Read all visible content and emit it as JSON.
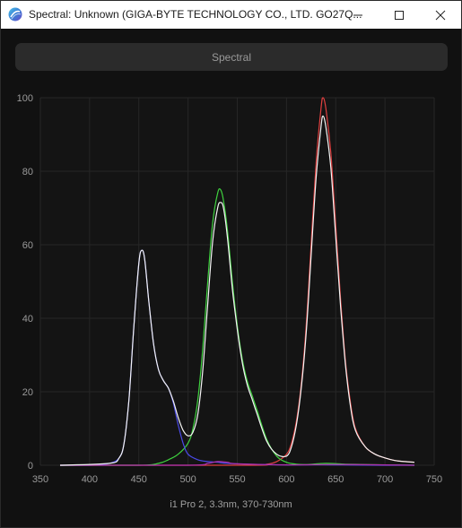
{
  "window": {
    "title": "Spectral: Unknown (GIGA-BYTE TECHNOLOGY CO., LTD. GO27Q..."
  },
  "combo": {
    "label": "Spectral"
  },
  "footer": {
    "text": "i1 Pro 2, 3.3nm, 370-730nm"
  },
  "colors": {
    "background": "#111111",
    "plot_background": "#141414",
    "grid": "#262626",
    "red": "#e04040",
    "green": "#3fd23f",
    "blue": "#4a4ae8",
    "white": "#f4f4f4",
    "magenta": "#b030b0"
  },
  "chart_data": {
    "type": "line",
    "xlim": [
      350,
      750
    ],
    "ylim": [
      0,
      100
    ],
    "xticks": [
      350,
      400,
      450,
      500,
      550,
      600,
      650,
      700,
      750
    ],
    "yticks": [
      0,
      20,
      40,
      60,
      80,
      100
    ],
    "grid": true,
    "series": [
      {
        "color": "red",
        "x": [
          370,
          560,
          580,
          590,
          600,
          605,
          610,
          615,
          620,
          625,
          630,
          635,
          637,
          640,
          645,
          650,
          655,
          660,
          665,
          670,
          680,
          690,
          700,
          710,
          720,
          730
        ],
        "y": [
          0,
          0,
          0.3,
          1,
          3,
          6,
          12,
          22,
          38,
          60,
          82,
          97,
          100,
          97,
          85,
          65,
          45,
          28,
          17,
          10,
          5,
          3,
          2,
          1.3,
          1,
          0.8
        ]
      },
      {
        "color": "green",
        "x": [
          370,
          450,
          470,
          480,
          490,
          500,
          505,
          510,
          515,
          520,
          525,
          530,
          533,
          536,
          540,
          545,
          550,
          555,
          560,
          565,
          570,
          580,
          590,
          600,
          610,
          620,
          640,
          660,
          680,
          700,
          730
        ],
        "y": [
          0,
          0,
          0.5,
          1.5,
          3,
          6,
          10,
          18,
          32,
          50,
          66,
          74,
          75,
          72,
          64,
          50,
          38,
          29,
          23,
          19,
          15,
          7,
          2.5,
          0.8,
          0.3,
          0.2,
          0.5,
          0.3,
          0.2,
          0.1,
          0
        ]
      },
      {
        "color": "blue",
        "x": [
          370,
          400,
          420,
          430,
          435,
          440,
          445,
          450,
          453,
          456,
          460,
          465,
          470,
          475,
          480,
          485,
          490,
          495,
          500,
          510,
          520,
          530,
          540,
          560,
          600,
          650,
          700,
          730
        ],
        "y": [
          0,
          0,
          0.5,
          2,
          6,
          18,
          38,
          55,
          58.5,
          56,
          45,
          33,
          26,
          23,
          21,
          17,
          11,
          6,
          3,
          1.5,
          1,
          0.8,
          0.5,
          0.3,
          0.1,
          0.1,
          0,
          0
        ]
      },
      {
        "color": "magenta",
        "x": [
          370,
          500,
          520,
          530,
          540,
          550,
          600,
          650,
          700,
          730
        ],
        "y": [
          0,
          0,
          0.5,
          1,
          0.8,
          0.4,
          0.1,
          0.2,
          0.1,
          0
        ]
      },
      {
        "color": "white",
        "x": [
          370,
          420,
          430,
          435,
          440,
          445,
          450,
          453,
          456,
          460,
          465,
          470,
          475,
          480,
          485,
          490,
          495,
          500,
          505,
          510,
          515,
          520,
          525,
          530,
          533,
          536,
          540,
          545,
          550,
          555,
          560,
          565,
          570,
          580,
          590,
          600,
          605,
          610,
          615,
          620,
          625,
          630,
          635,
          637,
          640,
          645,
          650,
          655,
          660,
          665,
          670,
          680,
          690,
          700,
          710,
          720,
          730
        ],
        "y": [
          0,
          0.5,
          2,
          6,
          18,
          38,
          55,
          58.5,
          56,
          45,
          33,
          26,
          23,
          21,
          17.5,
          13,
          9.5,
          8,
          9,
          14,
          26,
          44,
          61,
          70,
          71.5,
          70,
          62,
          48,
          37,
          28,
          22,
          18,
          14,
          6.5,
          3,
          2.5,
          5,
          11,
          21,
          36,
          57,
          78,
          92,
          95,
          92,
          81,
          62,
          43,
          27,
          16,
          9.5,
          5,
          3,
          2,
          1.3,
          1,
          0.8
        ]
      }
    ]
  }
}
